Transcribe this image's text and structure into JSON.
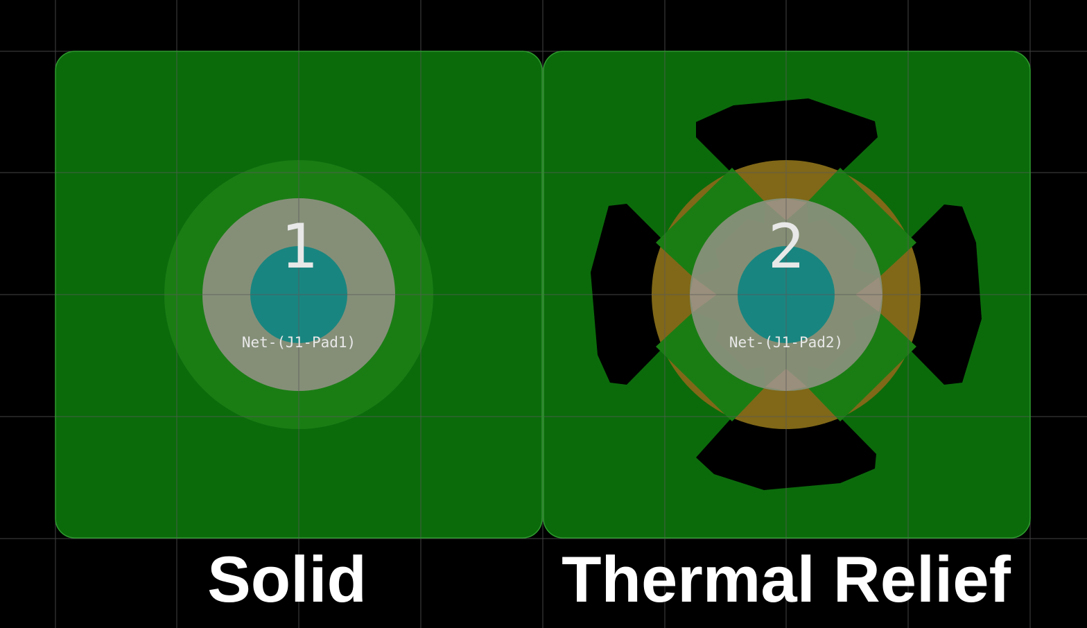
{
  "panels": [
    {
      "id": "solid",
      "pad_number": "1",
      "net_label": "Net-(J1-Pad1)",
      "caption": "Solid",
      "connection_type": "solid"
    },
    {
      "id": "thermal",
      "pad_number": "2",
      "net_label": "Net-(J1-Pad2)",
      "caption": "Thermal Relief",
      "connection_type": "thermal-relief"
    }
  ],
  "colors": {
    "background": "#000000",
    "grid": "#5a5a5a",
    "copper_zone": "#0b6b0b",
    "zone_outline": "#2e9a2e",
    "pad_ring": "#1a7d14",
    "pad_copper": "#858f78",
    "drill_hole": "#198580",
    "thermal_gap": "#806818",
    "label_text": "#e8e8e8",
    "caption_text": "#ffffff"
  }
}
